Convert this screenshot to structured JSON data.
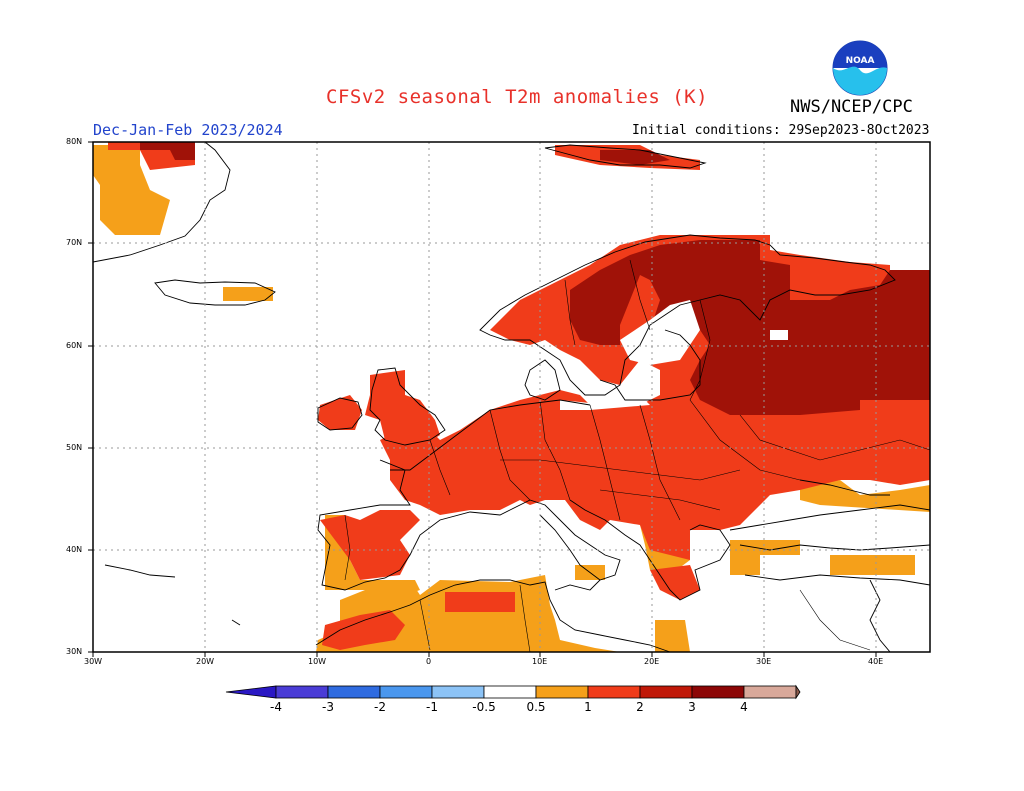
{
  "title": "CFSv2 seasonal T2m anomalies (K)",
  "agency": "NWS/NCEP/CPC",
  "logo_text": "NOAA",
  "season": "Dec-Jan-Feb 2023/2024",
  "initial_conditions": "Initial conditions: 29Sep2023-8Oct2023",
  "lat_labels": [
    "80N",
    "70N",
    "60N",
    "50N",
    "40N",
    "30N"
  ],
  "lon_labels": [
    "30W",
    "20W",
    "10W",
    "0",
    "10E",
    "20E",
    "30E",
    "40E"
  ],
  "colorbar": {
    "labels": [
      "-4",
      "-3",
      "-2",
      "-1",
      "-0.5",
      "0.5",
      "1",
      "2",
      "3",
      "4"
    ],
    "colors": [
      "#2a18c4",
      "#4a3cd6",
      "#2f6be0",
      "#4a97ee",
      "#8cc3f6",
      "#ffffff",
      "#f5a01a",
      "#f03c1a",
      "#c01808",
      "#8c0606",
      "#d8a89a",
      "#8a5a4c"
    ]
  }
}
